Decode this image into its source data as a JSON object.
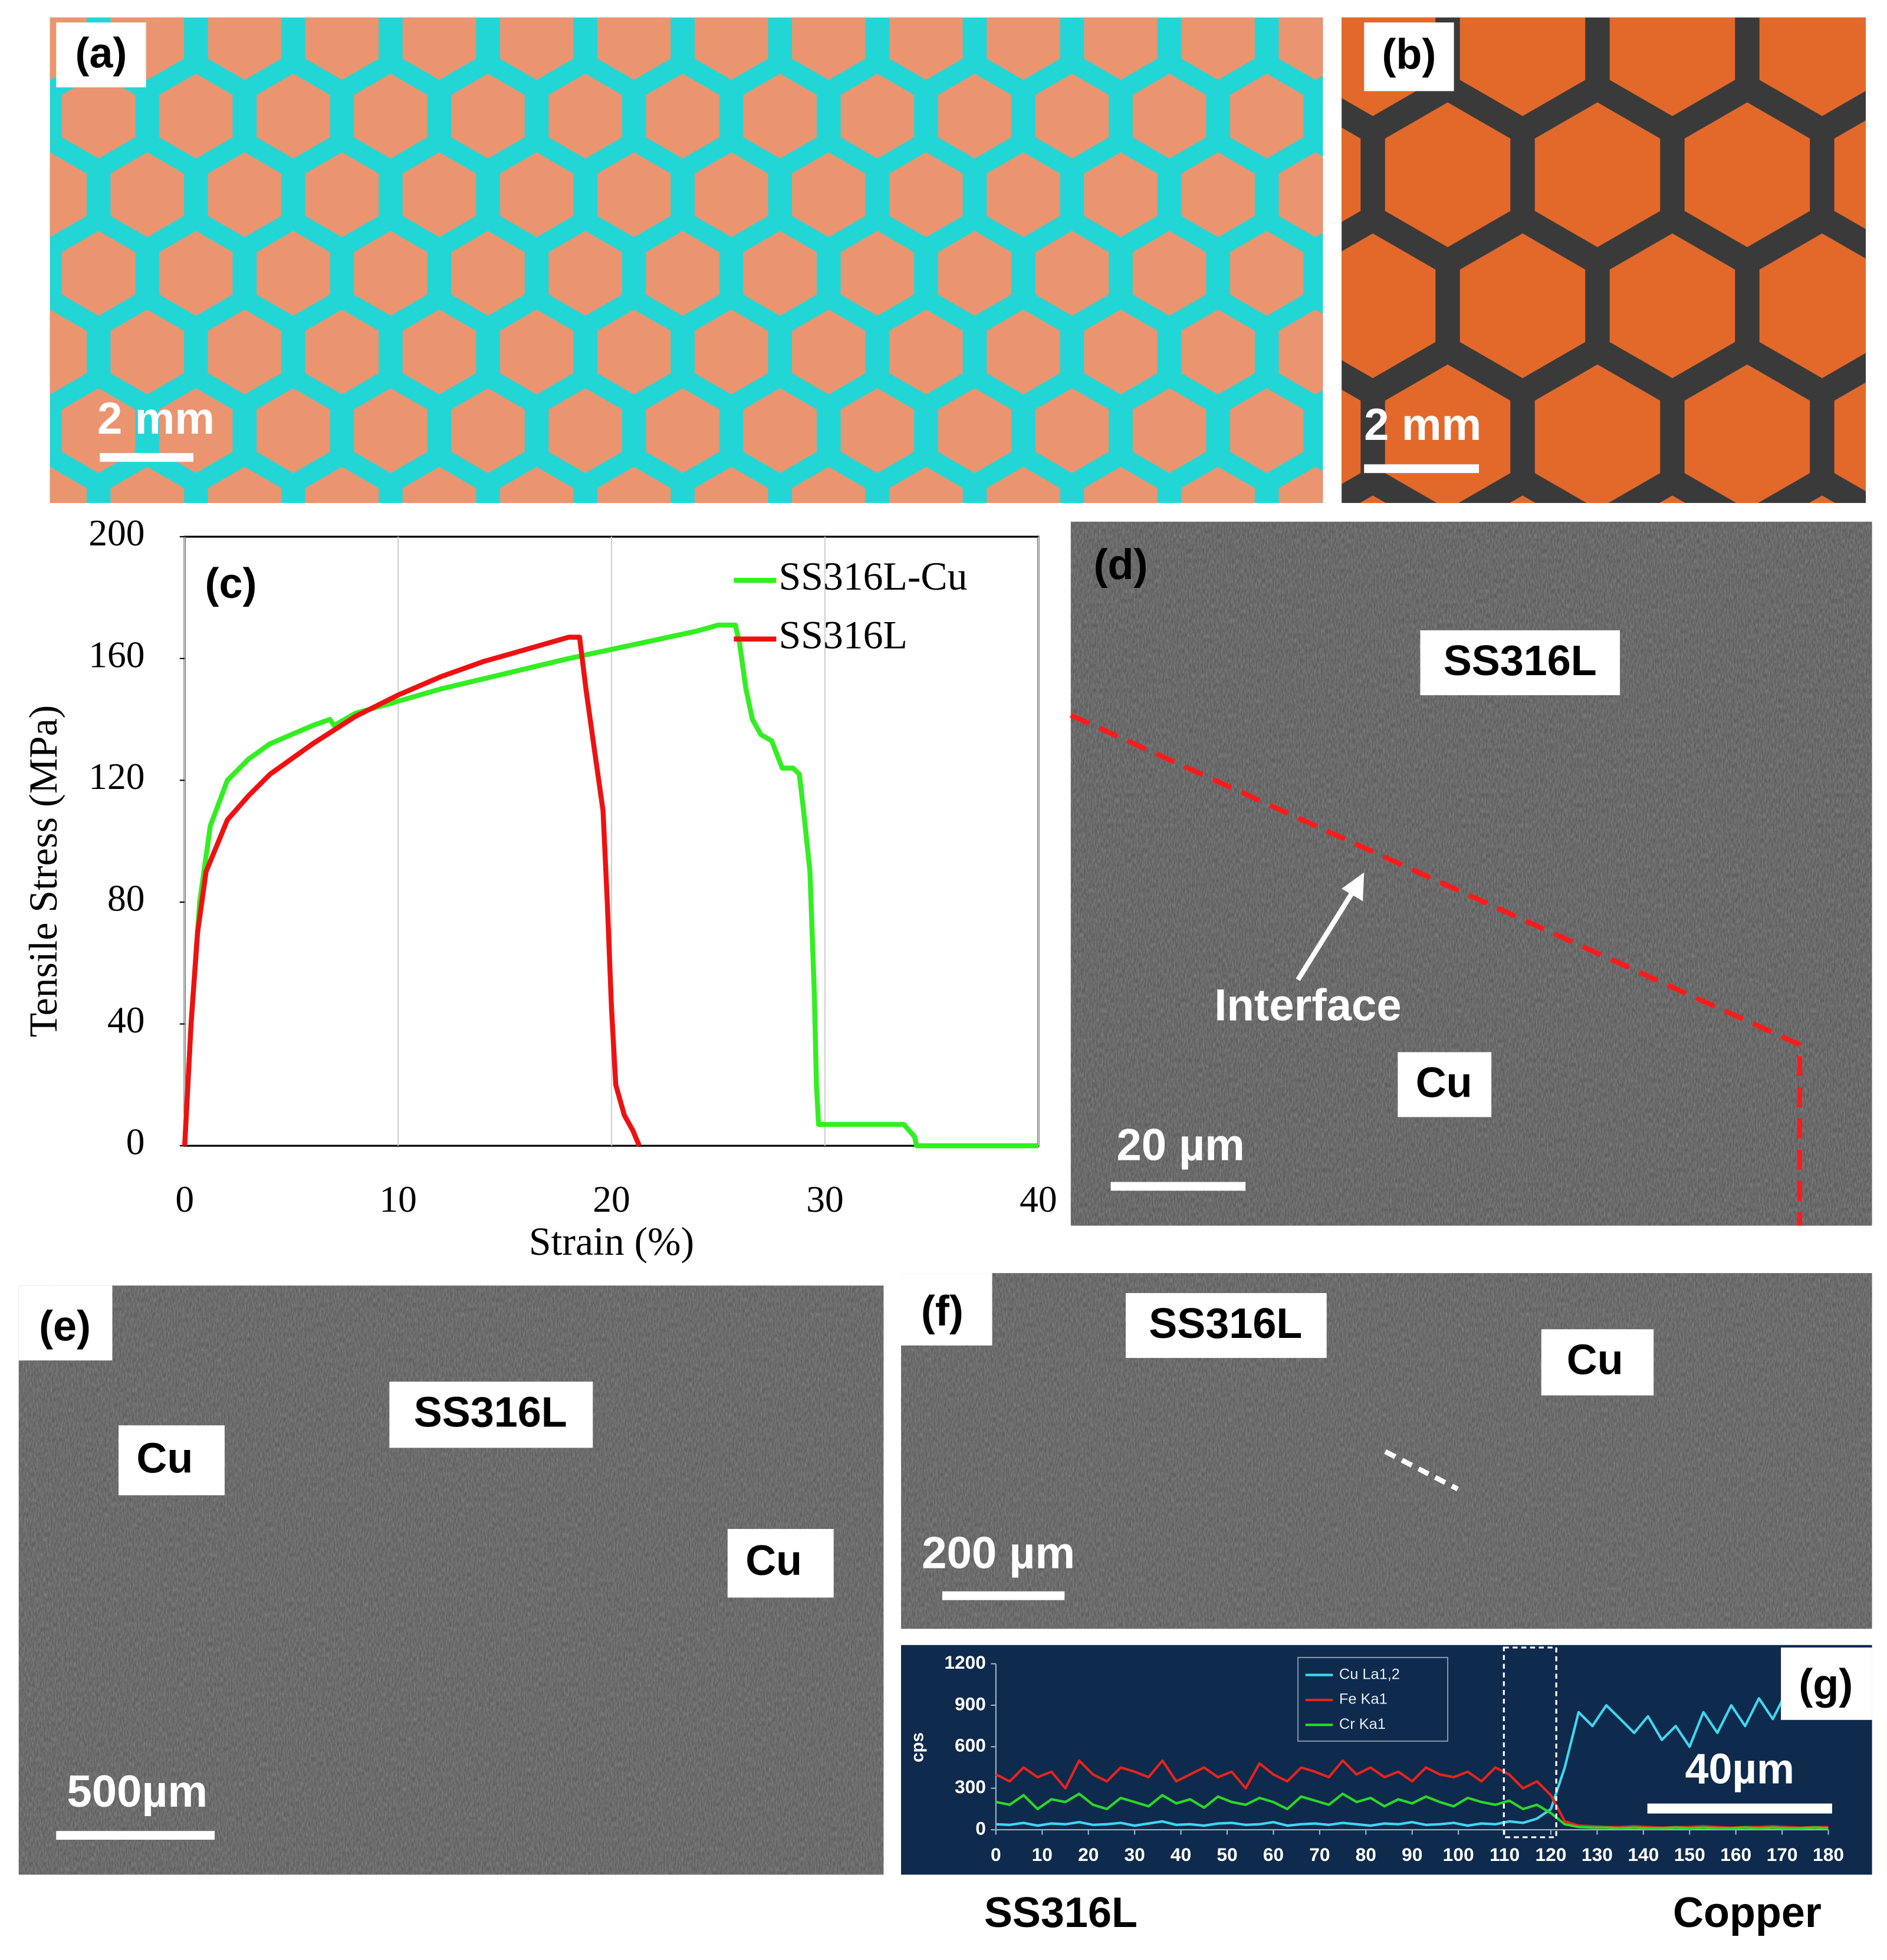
{
  "panels": [
    {
      "label": "(a)",
      "scale_bar": "2 mm"
    },
    {
      "label": "(b)",
      "scale_bar": "2 mm"
    },
    {
      "label": "(d)",
      "regions": [
        "SS316L",
        "Cu"
      ],
      "annotation": "Interface",
      "scale_bar": "20 µm"
    },
    {
      "label": "(e)",
      "regions": [
        "SS316L",
        "Cu",
        "Cu"
      ],
      "scale_bar": "500µm"
    },
    {
      "label": "(f)",
      "regions": [
        "SS316L",
        "Cu"
      ],
      "scale_bar": "200 µm"
    }
  ],
  "chart_data": [
    {
      "type": "line",
      "label": "(c)",
      "x_label": "Strain (%)",
      "y_label": "Tensile Stress (MPa)",
      "xlim": [
        0,
        40
      ],
      "xticks": [
        0,
        10,
        20,
        30,
        40
      ],
      "ylim": [
        0,
        200
      ],
      "yticks": [
        0,
        40,
        80,
        120,
        160,
        200
      ],
      "grid": true,
      "legend": "top-right",
      "series": [
        {
          "name": "SS316L-Cu",
          "color": "#33ee22",
          "x": [
            0,
            0.3,
            0.7,
            1.2,
            2,
            3,
            4,
            5,
            6,
            6.8,
            7,
            8,
            10,
            12,
            15,
            18,
            20,
            22,
            24,
            25,
            25.8,
            26,
            26.3,
            26.6,
            27,
            27.5,
            28,
            28.5,
            28.8,
            29,
            29.3,
            29.5,
            29.6,
            29.7,
            32,
            33.7,
            34.2,
            34.3,
            40
          ],
          "values": [
            0,
            40,
            80,
            105,
            120,
            127,
            132,
            135,
            138,
            140,
            138,
            142,
            146,
            150,
            155,
            160,
            163,
            166,
            169,
            171,
            171,
            165,
            150,
            140,
            135,
            133,
            124,
            124,
            122,
            110,
            90,
            50,
            20,
            7,
            7,
            7,
            3,
            0,
            0
          ]
        },
        {
          "name": "SS316L",
          "color": "#ee1111",
          "x": [
            0,
            0.3,
            0.6,
            1,
            2,
            3,
            4,
            6,
            8,
            10,
            12,
            14,
            15,
            16,
            18,
            18.5,
            18.8,
            19.2,
            19.6,
            19.8,
            20,
            20.2,
            20.6,
            21,
            21.3
          ],
          "values": [
            0,
            40,
            70,
            90,
            107,
            115,
            122,
            132,
            141,
            148,
            154,
            159,
            161,
            163,
            167,
            167,
            150,
            130,
            110,
            80,
            45,
            20,
            10,
            5,
            0
          ]
        }
      ]
    },
    {
      "type": "line",
      "label": "(g)",
      "y_label": "cps",
      "scale_bar": "40µm",
      "annotations": [
        "SS316L",
        "Copper"
      ],
      "xlim": [
        0,
        180
      ],
      "xticks": [
        0,
        10,
        20,
        30,
        40,
        50,
        60,
        70,
        80,
        90,
        100,
        110,
        120,
        130,
        140,
        150,
        160,
        170,
        180
      ],
      "ylim": [
        0,
        1200
      ],
      "yticks": [
        0,
        300,
        600,
        900,
        1200
      ],
      "x": [
        0,
        3,
        6,
        9,
        12,
        15,
        18,
        21,
        24,
        27,
        30,
        33,
        36,
        39,
        42,
        45,
        48,
        51,
        54,
        57,
        60,
        63,
        66,
        69,
        72,
        75,
        78,
        81,
        84,
        87,
        90,
        93,
        96,
        99,
        102,
        105,
        108,
        111,
        114,
        117,
        120,
        123,
        126,
        129,
        132,
        135,
        138,
        141,
        144,
        147,
        150,
        153,
        156,
        159,
        162,
        165,
        168,
        171,
        174,
        177,
        180
      ],
      "series": [
        {
          "name": "Cu La1,2",
          "color": "#3fd6f0",
          "values": [
            40,
            35,
            50,
            30,
            45,
            40,
            55,
            35,
            40,
            50,
            30,
            45,
            60,
            35,
            40,
            30,
            45,
            50,
            35,
            40,
            55,
            30,
            40,
            45,
            35,
            50,
            40,
            30,
            45,
            40,
            55,
            35,
            40,
            50,
            30,
            45,
            40,
            60,
            50,
            80,
            150,
            450,
            850,
            750,
            900,
            800,
            700,
            820,
            650,
            750,
            600,
            850,
            700,
            900,
            750,
            950,
            800,
            1000,
            850,
            1000,
            950
          ]
        },
        {
          "name": "Fe Ka1",
          "color": "#e5241c",
          "values": [
            400,
            350,
            450,
            380,
            420,
            300,
            500,
            400,
            350,
            450,
            420,
            380,
            500,
            350,
            400,
            450,
            380,
            420,
            300,
            480,
            400,
            350,
            450,
            420,
            380,
            500,
            400,
            450,
            380,
            420,
            350,
            450,
            400,
            380,
            420,
            350,
            450,
            400,
            300,
            350,
            250,
            60,
            30,
            25,
            20,
            20,
            25,
            20,
            15,
            20,
            20,
            25,
            20,
            15,
            20,
            20,
            25,
            20,
            15,
            20,
            20
          ]
        },
        {
          "name": "Cr Ka1",
          "color": "#2ad82a",
          "values": [
            200,
            180,
            250,
            150,
            220,
            200,
            260,
            180,
            150,
            230,
            200,
            170,
            250,
            190,
            220,
            160,
            240,
            200,
            180,
            230,
            200,
            150,
            240,
            210,
            180,
            260,
            200,
            230,
            170,
            220,
            190,
            240,
            200,
            170,
            230,
            200,
            180,
            210,
            150,
            180,
            120,
            40,
            20,
            15,
            15,
            10,
            15,
            10,
            10,
            15,
            10,
            15,
            10,
            10,
            15,
            10,
            15,
            10,
            10,
            15,
            10
          ]
        }
      ]
    }
  ]
}
